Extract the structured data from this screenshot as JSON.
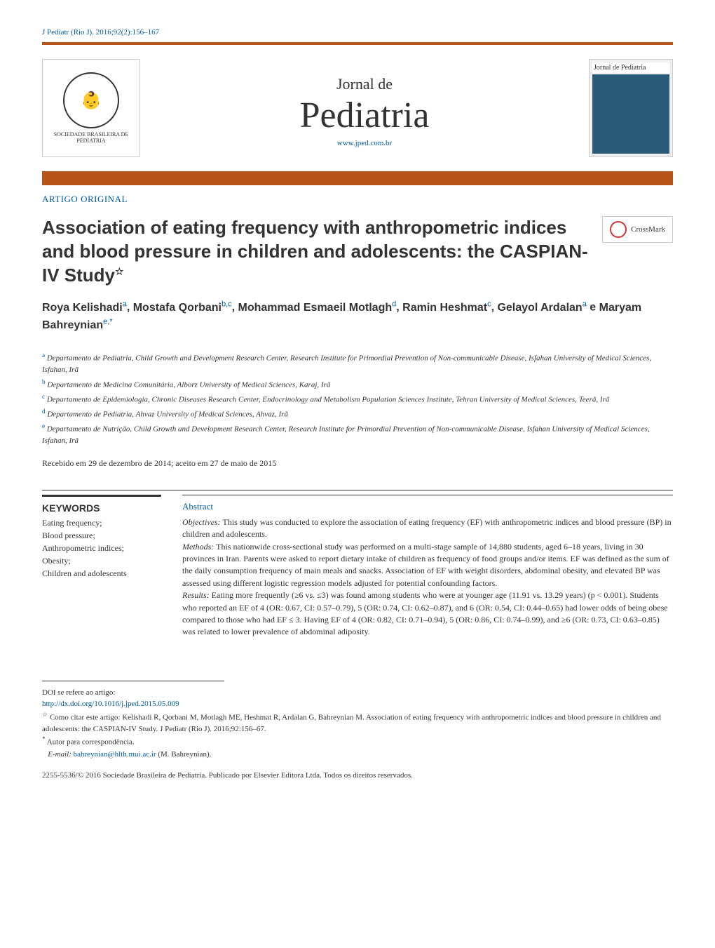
{
  "citation": "J Pediatr (Rio J). 2016;92(2):156–167",
  "colors": {
    "accent_blue": "#005a9c",
    "accent_orange": "#b8531a",
    "text": "#333333",
    "border_light": "#cccccc",
    "background": "#ffffff"
  },
  "journalHeader": {
    "logoText": "SOCIEDADE BRASILEIRA DE PEDIATRIA",
    "logoGlyph": "👶",
    "preTitle": "Jornal de",
    "mainTitle": "Pediatria",
    "url": "www.jped.com.br",
    "coverHeader": "Jornal de Pediatria"
  },
  "articleType": "ARTIGO ORIGINAL",
  "crossmark": "CrossMark",
  "articleTitle": "Association of eating frequency with anthropometric indices and blood pressure in children and adolescents: the CASPIAN-IV Study",
  "starNote": "☆",
  "authors": [
    {
      "name": "Roya Kelishadi",
      "affil": "a"
    },
    {
      "name": "Mostafa Qorbani",
      "affil": "b,c"
    },
    {
      "name": "Mohammad Esmaeil Motlagh",
      "affil": "d"
    },
    {
      "name": "Ramin Heshmat",
      "affil": "c"
    },
    {
      "name": "Gelayol Ardalan",
      "affil": "a"
    },
    {
      "name": "Maryam Bahreynian",
      "affil": "e,*"
    }
  ],
  "authorSeparator": ", ",
  "authorAnd": " e ",
  "affiliations": [
    {
      "sup": "a",
      "text": "Departamento de Pediatria, Child Growth and Development Research Center, Research Institute for Primordial Prevention of Non-communicable Disease, Isfahan University of Medical Sciences, Isfahan, Irã"
    },
    {
      "sup": "b",
      "text": "Departamento de Medicina Comunitária, Alborz University of Medical Sciences, Karaj, Irã"
    },
    {
      "sup": "c",
      "text": "Departamento de Epidemiologia, Chronic Diseases Research Center, Endocrinology and Metabolism Population Sciences Institute, Tehran University of Medical Sciences, Teerã, Irã"
    },
    {
      "sup": "d",
      "text": "Departamento de Pediatria, Ahvaz University of Medical Sciences, Ahvaz, Irã"
    },
    {
      "sup": "e",
      "text": "Departamento de Nutrição, Child Growth and Development Research Center, Research Institute for Primordial Prevention of Non-communicable Disease, Isfahan University of Medical Sciences, Isfahan, Irã"
    }
  ],
  "dates": "Recebido em 29 de dezembro de 2014; aceito em 27 de maio de 2015",
  "keywords": {
    "title": "KEYWORDS",
    "items": "Eating frequency;\nBlood pressure;\nAnthropometric indices;\nObesity;\nChildren and adolescents"
  },
  "abstract": {
    "label": "Abstract",
    "sections": [
      {
        "heading": "Objectives:",
        "body": "This study was conducted to explore the association of eating frequency (EF) with anthropometric indices and blood pressure (BP) in children and adolescents."
      },
      {
        "heading": "Methods:",
        "body": "This nationwide cross-sectional study was performed on a multi-stage sample of 14,880 students, aged 6–18 years, living in 30 provinces in Iran. Parents were asked to report dietary intake of children as frequency of food groups and/or items. EF was defined as the sum of the daily consumption frequency of main meals and snacks. Association of EF with weight disorders, abdominal obesity, and elevated BP was assessed using different logistic regression models adjusted for potential confounding factors."
      },
      {
        "heading": "Results:",
        "body": "Eating more frequently (≥6 vs. ≤3) was found among students who were at younger age (11.91 vs. 13.29 years) (p < 0.001). Students who reported an EF of 4 (OR: 0.67, CI: 0.57–0.79), 5 (OR: 0.74, CI: 0.62–0.87), and 6 (OR: 0.54, CI: 0.44–0.65) had lower odds of being obese compared to those who had EF ≤ 3. Having EF of 4 (OR: 0.82, CI: 0.71–0.94), 5 (OR: 0.86, CI: 0.74–0.99), and ≥6 (OR: 0.73, CI: 0.63–0.85) was related to lower prevalence of abdominal adiposity."
      }
    ]
  },
  "footer": {
    "doiLabel": "DOI se refere ao artigo:",
    "doiLink": "http://dx.doi.org/10.1016/j.jped.2015.05.009",
    "citeMark": "☆",
    "citeText": "Como citar este artigo: Kelishadi R, Qorbani M, Motlagh ME, Heshmat R, Ardalan G, Bahreynian M. Association of eating frequency with anthropometric indices and blood pressure in children and adolescents: the CASPIAN-IV Study. J Pediatr (Rio J). 2016;92:156–67.",
    "correspondMark": "*",
    "correspondLabel": "Autor para correspondência.",
    "emailLabel": "E-mail:",
    "email": "bahreynian@hlth.mui.ac.ir",
    "emailAuthor": "(M. Bahreynian).",
    "copyright": "2255-5536/© 2016 Sociedade Brasileira de Pediatria. Publicado por Elsevier Editora Ltda. Todos os direitos reservados."
  }
}
